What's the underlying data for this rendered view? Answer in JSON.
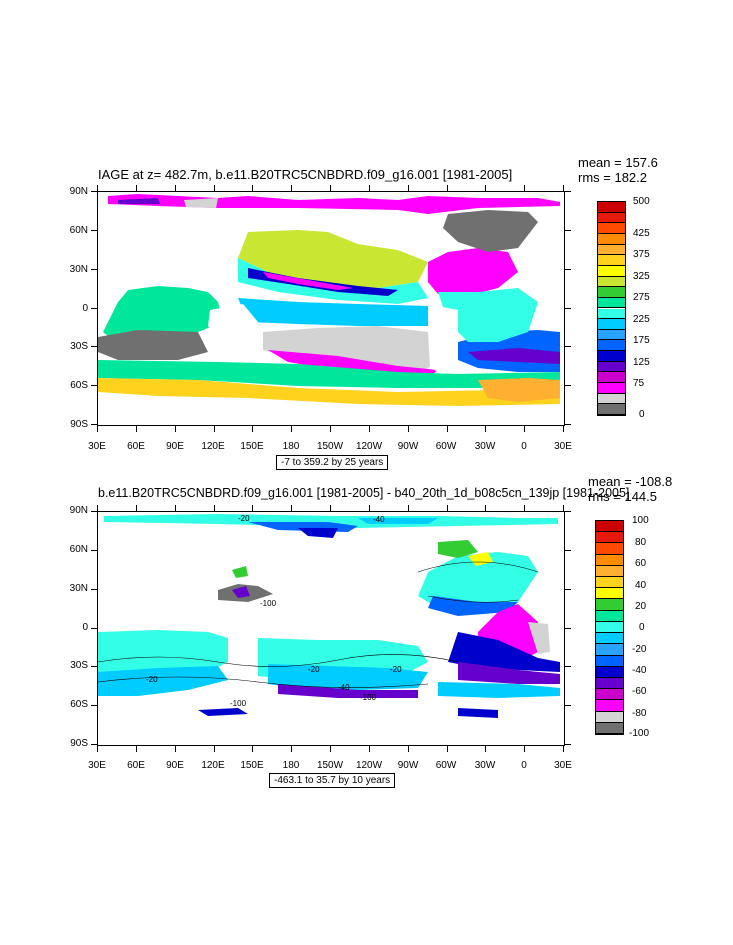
{
  "panels": [
    {
      "title": "IAGE at z= 482.7m, b.e11.B20TRC5CNBDRD.f09_g16.001 [1981-2005]",
      "mean": "mean = 157.6",
      "rms": "rms = 182.2",
      "contour_info": "-7 to 359.2 by 25 years",
      "lat_labels": [
        "90N",
        "60N",
        "30N",
        "0",
        "30S",
        "60S",
        "90S"
      ],
      "lon_labels": [
        "30E",
        "60E",
        "90E",
        "120E",
        "150E",
        "180",
        "150W",
        "120W",
        "90W",
        "60W",
        "30W",
        "0",
        "30E"
      ],
      "colorbar": {
        "labels": [
          "500",
          "425",
          "375",
          "325",
          "275",
          "225",
          "175",
          "125",
          "75",
          "0"
        ],
        "colors": [
          "#cc0000",
          "#e61a0a",
          "#ff4a00",
          "#ff8c00",
          "#ffb030",
          "#ffd21e",
          "#ffff00",
          "#c8e632",
          "#33cc33",
          "#00e69a",
          "#33ffe6",
          "#00ccff",
          "#2aa2ff",
          "#0064ff",
          "#0000cd",
          "#6600cc",
          "#cc00cc",
          "#ff00ff",
          "#d3d3d3",
          "#707070"
        ]
      }
    },
    {
      "title": "b.e11.B20TRC5CNBDRD.f09_g16.001 [1981-2005] - b40_20th_1d_b08c5cn_139jp [1981-2005]",
      "mean": "mean = -108.8",
      "rms": "rms = 144.5",
      "contour_info": "-463.1 to 35.7 by 10 years",
      "lat_labels": [
        "90N",
        "60N",
        "30N",
        "0",
        "30S",
        "60S",
        "90S"
      ],
      "lon_labels": [
        "30E",
        "60E",
        "90E",
        "120E",
        "150E",
        "180",
        "150W",
        "120W",
        "90W",
        "60W",
        "30W",
        "0",
        "30E"
      ],
      "contour_labels": [
        "-20",
        "-40",
        "-100",
        "-20",
        "-20",
        "-40",
        "-100",
        "-100",
        "-20"
      ],
      "colorbar": {
        "labels": [
          "100",
          "80",
          "60",
          "40",
          "20",
          "0",
          "-20",
          "-40",
          "-60",
          "-80",
          "-100"
        ],
        "colors": [
          "#cc0000",
          "#e61a0a",
          "#ff4a00",
          "#ff8c00",
          "#ffb030",
          "#ffd21e",
          "#ffff00",
          "#33cc33",
          "#00e69a",
          "#33ffe6",
          "#00ccff",
          "#2aa2ff",
          "#0064ff",
          "#0000cd",
          "#6600cc",
          "#cc00cc",
          "#ff00ff",
          "#d3d3d3",
          "#707070"
        ]
      }
    }
  ]
}
